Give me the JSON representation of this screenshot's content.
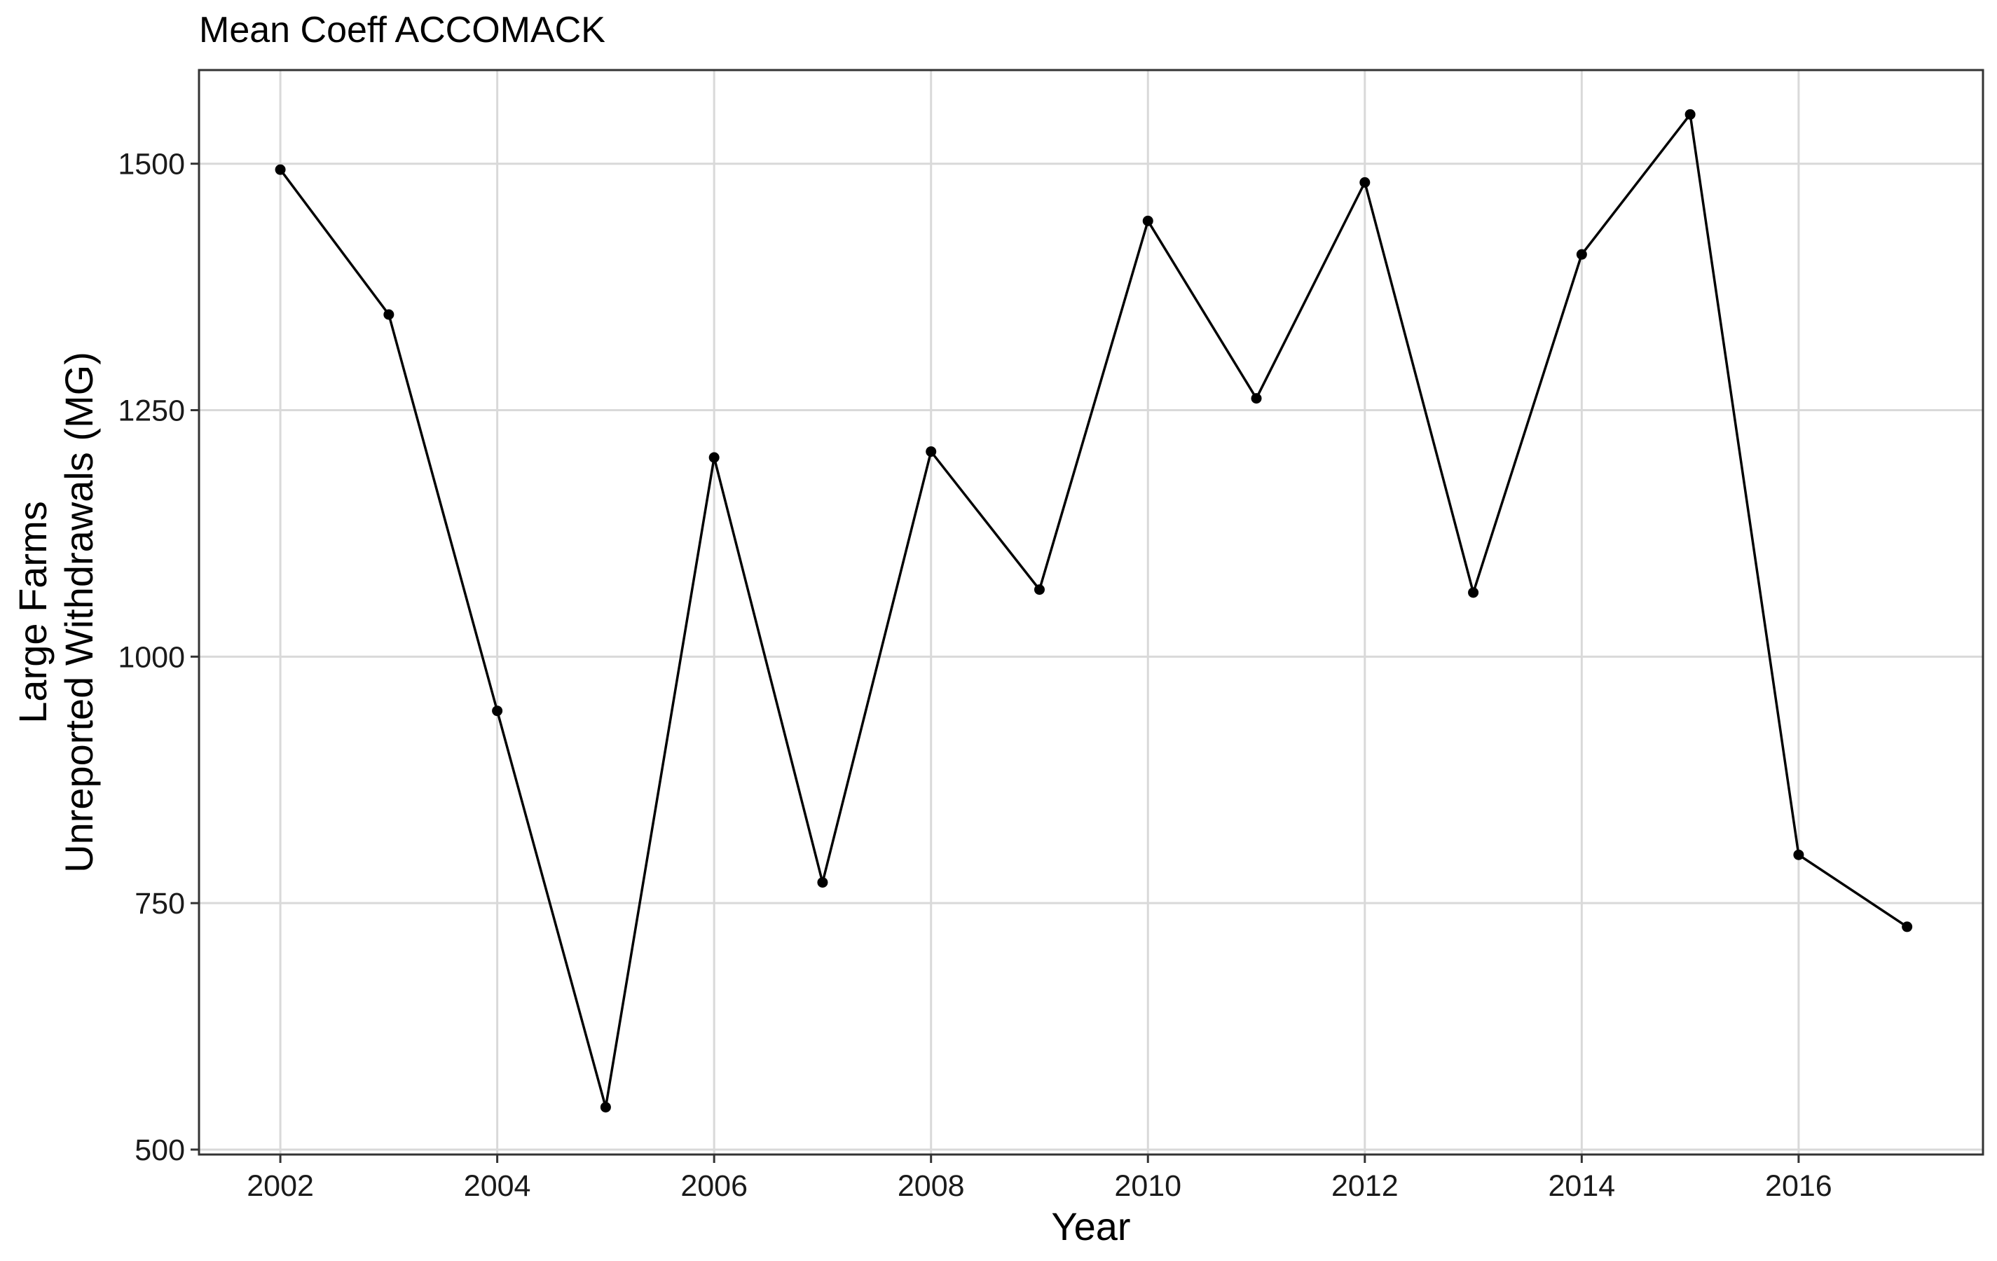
{
  "chart_data": {
    "type": "line",
    "title": "Mean Coeff ACCOMACK",
    "xlabel": "Year",
    "ylabel_lines": [
      "Large Farms",
      "Unreported Withdrawals (MG)"
    ],
    "xlim": [
      2001.25,
      2017.7
    ],
    "ylim": [
      495,
      1595
    ],
    "x_ticks": [
      2002,
      2004,
      2006,
      2008,
      2010,
      2012,
      2014,
      2016
    ],
    "y_ticks": [
      500,
      750,
      1000,
      1250,
      1500
    ],
    "grid": true,
    "series": [
      {
        "color": "#000000",
        "x": [
          2002,
          2003,
          2004,
          2005,
          2006,
          2007,
          2008,
          2009,
          2010,
          2011,
          2012,
          2013,
          2014,
          2015,
          2016,
          2017
        ],
        "y": [
          1494,
          1347,
          945,
          543,
          1202,
          771,
          1208,
          1068,
          1442,
          1262,
          1481,
          1065,
          1408,
          1550,
          799,
          726
        ]
      }
    ]
  }
}
